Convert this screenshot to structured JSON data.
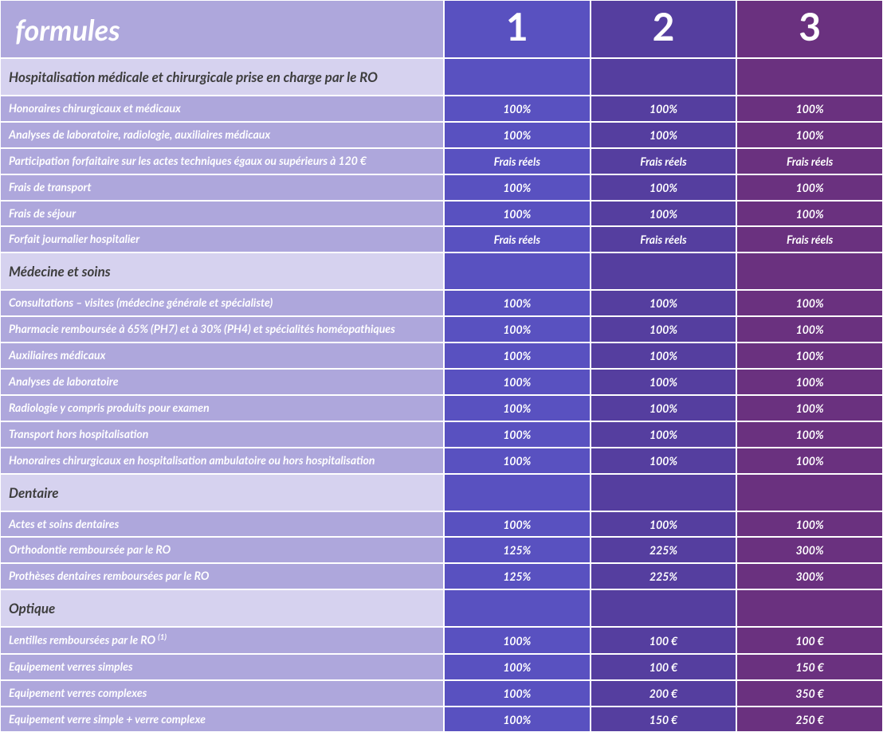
{
  "colors": {
    "header_label_bg": "#aea7dc",
    "plan_bg": [
      "#5951c0",
      "#553e9f",
      "#6a317f"
    ],
    "section_label_bg": "#d6d2ef",
    "section_val_bg": [
      "#5951c0",
      "#553e9f",
      "#6a317f"
    ],
    "row_label_bg": "#aea7dc",
    "row_val_bg": [
      "#5951c0",
      "#553e9f",
      "#6a317f"
    ],
    "section_text": "#3d3d3d",
    "white": "#ffffff"
  },
  "title": "formules",
  "plans": [
    "1",
    "2",
    "3"
  ],
  "sections": [
    {
      "name": "Hospitalisation médicale et chirurgicale prise en charge par le RO",
      "rows": [
        {
          "label": "Honoraires chirurgicaux et médicaux",
          "vals": [
            "100%",
            "100%",
            "100%"
          ]
        },
        {
          "label": "Analyses de laboratoire, radiologie, auxiliaires médicaux",
          "vals": [
            "100%",
            "100%",
            "100%"
          ]
        },
        {
          "label": "Participation forfaitaire sur les actes techniques égaux ou supérieurs à 120 €",
          "vals": [
            "Frais réels",
            "Frais réels",
            "Frais réels"
          ]
        },
        {
          "label": "Frais de transport",
          "vals": [
            "100%",
            "100%",
            "100%"
          ]
        },
        {
          "label": "Frais de séjour",
          "vals": [
            "100%",
            "100%",
            "100%"
          ]
        },
        {
          "label": "Forfait journalier hospitalier",
          "vals": [
            "Frais réels",
            "Frais réels",
            "Frais réels"
          ]
        }
      ]
    },
    {
      "name": "Médecine et soins",
      "rows": [
        {
          "label": "Consultations – visites (médecine générale et spécialiste)",
          "vals": [
            "100%",
            "100%",
            "100%"
          ]
        },
        {
          "label": "Pharmacie remboursée à 65% (PH7) et à 30% (PH4) et spécialités homéopathiques",
          "vals": [
            "100%",
            "100%",
            "100%"
          ]
        },
        {
          "label": "Auxiliaires médicaux",
          "vals": [
            "100%",
            "100%",
            "100%"
          ]
        },
        {
          "label": "Analyses de laboratoire",
          "vals": [
            "100%",
            "100%",
            "100%"
          ]
        },
        {
          "label": "Radiologie y compris produits pour examen",
          "vals": [
            "100%",
            "100%",
            "100%"
          ]
        },
        {
          "label": "Transport hors hospitalisation",
          "vals": [
            "100%",
            "100%",
            "100%"
          ]
        },
        {
          "label": "Honoraires chirurgicaux en hospitalisation ambulatoire ou hors hospitalisation",
          "vals": [
            "100%",
            "100%",
            "100%"
          ]
        }
      ]
    },
    {
      "name": "Dentaire",
      "rows": [
        {
          "label": "Actes et soins dentaires",
          "vals": [
            "100%",
            "100%",
            "100%"
          ]
        },
        {
          "label": "Orthodontie remboursée par le RO",
          "vals": [
            "125%",
            "225%",
            "300%"
          ]
        },
        {
          "label": "Prothèses dentaires remboursées par le RO",
          "vals": [
            "125%",
            "225%",
            "300%"
          ]
        }
      ]
    },
    {
      "name": "Optique",
      "rows": [
        {
          "label": "Lentilles remboursées par le RO",
          "sup": "(1)",
          "vals": [
            "100%",
            "100 €",
            "100 €"
          ]
        },
        {
          "label": "Equipement verres simples",
          "vals": [
            "100%",
            "100 €",
            "150 €"
          ]
        },
        {
          "label": "Equipement verres complexes",
          "vals": [
            "100%",
            "200 €",
            "350 €"
          ]
        },
        {
          "label": "Equipement verre simple + verre complexe",
          "vals": [
            "100%",
            "150 €",
            "250 €"
          ]
        }
      ]
    }
  ]
}
